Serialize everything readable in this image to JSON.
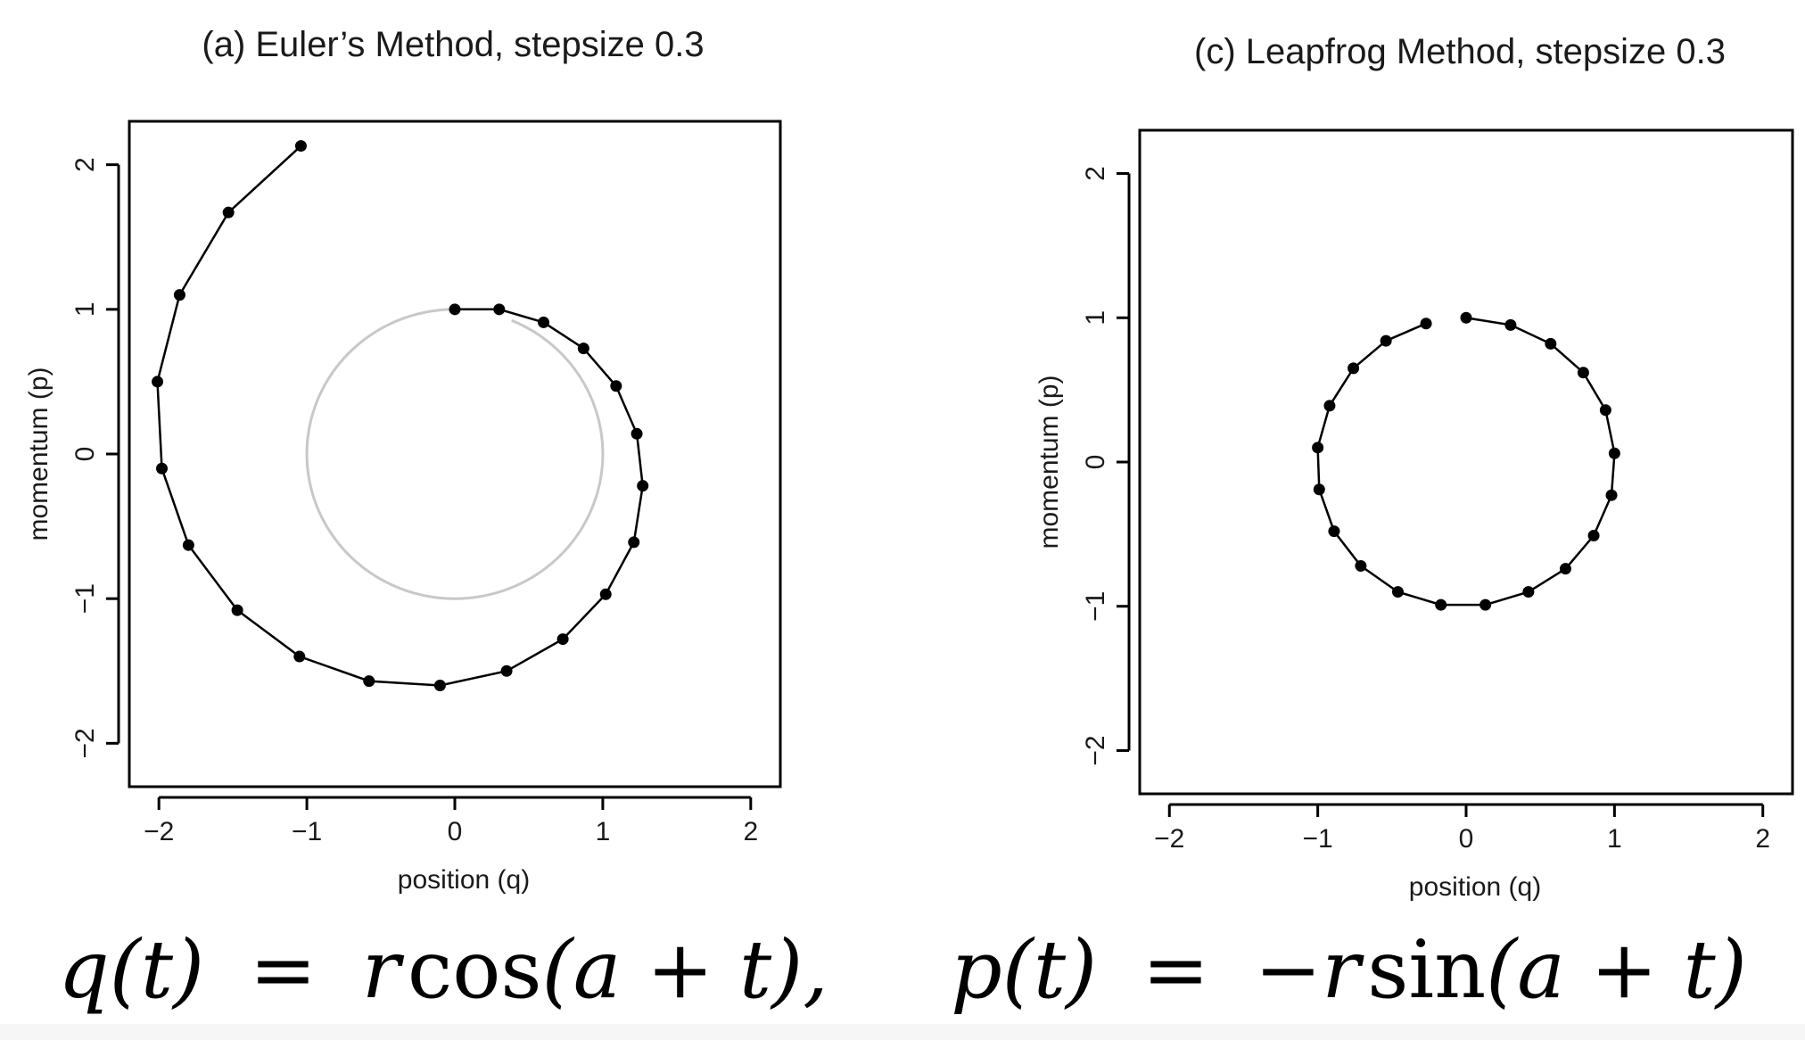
{
  "chart_data": [
    {
      "type": "line",
      "title": "(a) Euler’s Method, stepsize 0.3",
      "xlabel": "position (q)",
      "ylabel": "momentum (p)",
      "xlim": [
        -2.2,
        2.2
      ],
      "ylim": [
        -2.3,
        2.3
      ],
      "x_ticks": [
        -2,
        -1,
        0,
        1,
        2
      ],
      "y_ticks": [
        -2,
        -1,
        0,
        1,
        2
      ],
      "x_tick_labels": [
        "−2",
        "−1",
        "0",
        "1",
        "2"
      ],
      "y_tick_labels": [
        "−2",
        "−1",
        "0",
        "1",
        "2"
      ],
      "reference_circle": {
        "radius": 1.0,
        "color": "#c8c8c8"
      },
      "series": [
        {
          "color": "#000000",
          "points": [
            [
              0.0,
              1.0
            ],
            [
              0.3,
              1.0
            ],
            [
              0.6,
              0.91
            ],
            [
              0.87,
              0.73
            ],
            [
              1.09,
              0.47
            ],
            [
              1.23,
              0.14
            ],
            [
              1.27,
              -0.22
            ],
            [
              1.21,
              -0.61
            ],
            [
              1.02,
              -0.97
            ],
            [
              0.73,
              -1.28
            ],
            [
              0.35,
              -1.5
            ],
            [
              -0.1,
              -1.6
            ],
            [
              -0.58,
              -1.57
            ],
            [
              -1.05,
              -1.4
            ],
            [
              -1.47,
              -1.08
            ],
            [
              -1.8,
              -0.63
            ],
            [
              -1.98,
              -0.1
            ],
            [
              -2.01,
              0.5
            ],
            [
              -1.86,
              1.1
            ],
            [
              -1.53,
              1.67
            ],
            [
              -1.04,
              2.13
            ]
          ]
        }
      ]
    },
    {
      "type": "line",
      "title": "(c) Leapfrog Method, stepsize 0.3",
      "xlabel": "position (q)",
      "ylabel": "momentum (p)",
      "xlim": [
        -2.2,
        2.2
      ],
      "ylim": [
        -2.3,
        2.3
      ],
      "x_ticks": [
        -2,
        -1,
        0,
        1,
        2
      ],
      "y_ticks": [
        -2,
        -1,
        0,
        1,
        2
      ],
      "x_tick_labels": [
        "−2",
        "−1",
        "0",
        "1",
        "2"
      ],
      "y_tick_labels": [
        "−2",
        "−1",
        "0",
        "1",
        "2"
      ],
      "series": [
        {
          "color": "#000000",
          "points": [
            [
              0.0,
              1.0
            ],
            [
              0.3,
              0.95
            ],
            [
              0.57,
              0.82
            ],
            [
              0.79,
              0.62
            ],
            [
              0.94,
              0.36
            ],
            [
              1.0,
              0.06
            ],
            [
              0.98,
              -0.23
            ],
            [
              0.86,
              -0.51
            ],
            [
              0.67,
              -0.74
            ],
            [
              0.42,
              -0.9
            ],
            [
              0.13,
              -0.99
            ],
            [
              -0.17,
              -0.99
            ],
            [
              -0.46,
              -0.9
            ],
            [
              -0.71,
              -0.72
            ],
            [
              -0.89,
              -0.48
            ],
            [
              -0.99,
              -0.19
            ],
            [
              -1.0,
              0.1
            ],
            [
              -0.92,
              0.39
            ],
            [
              -0.76,
              0.65
            ],
            [
              -0.54,
              0.84
            ],
            [
              -0.27,
              0.96
            ]
          ]
        }
      ]
    }
  ],
  "equation": {
    "q_lhs": "q(t)",
    "eq1": "=",
    "r1": "r",
    "cos": "cos",
    "arg1": "(a + t),",
    "p_lhs": "p(t)",
    "eq2": "=",
    "neg_r": "−r",
    "sin": "sin",
    "arg2": "(a + t)"
  }
}
